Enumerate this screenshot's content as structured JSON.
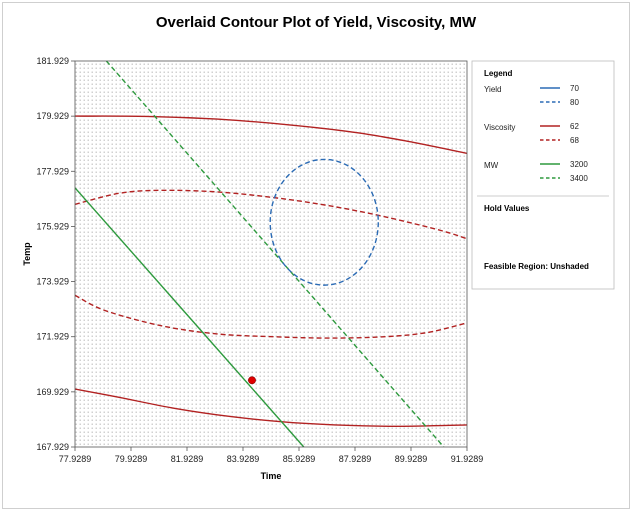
{
  "chart_data": {
    "type": "contour",
    "title": "Overlaid Contour Plot of Yield, Viscosity, MW",
    "xlabel": "Time",
    "ylabel": "Temp",
    "xlim": [
      77.9289,
      91.9289
    ],
    "ylim": [
      167.929,
      181.929
    ],
    "xticks": [
      "77.9289",
      "79.9289",
      "81.9289",
      "83.9289",
      "85.9289",
      "87.9289",
      "89.9289",
      "91.9289"
    ],
    "yticks": [
      "167.929",
      "169.929",
      "171.929",
      "173.929",
      "175.929",
      "177.929",
      "179.929",
      "181.929"
    ],
    "series": [
      {
        "group": "Viscosity",
        "level": "62",
        "style": "solid",
        "color": "#b22222",
        "points": [
          [
            77.93,
            179.93
          ],
          [
            80.5,
            179.92
          ],
          [
            83,
            179.82
          ],
          [
            85.5,
            179.62
          ],
          [
            88,
            179.33
          ],
          [
            90,
            178.98
          ],
          [
            91.93,
            178.58
          ]
        ]
      },
      {
        "group": "Viscosity",
        "level": "62",
        "style": "solid",
        "color": "#b22222",
        "points": [
          [
            77.93,
            170.03
          ],
          [
            79.5,
            169.73
          ],
          [
            81.5,
            169.33
          ],
          [
            83.5,
            169.03
          ],
          [
            85.5,
            168.83
          ],
          [
            87.5,
            168.72
          ],
          [
            89.5,
            168.68
          ],
          [
            91.93,
            168.73
          ]
        ]
      },
      {
        "group": "Viscosity",
        "level": "68",
        "style": "dashed",
        "color": "#b22222",
        "points": [
          [
            77.93,
            176.73
          ],
          [
            79.5,
            177.13
          ],
          [
            81,
            177.24
          ],
          [
            83,
            177.18
          ],
          [
            85,
            176.98
          ],
          [
            87,
            176.68
          ],
          [
            89,
            176.28
          ],
          [
            91,
            175.78
          ],
          [
            91.93,
            175.48
          ]
        ]
      },
      {
        "group": "Viscosity",
        "level": "68",
        "style": "dashed",
        "color": "#b22222",
        "points": [
          [
            77.93,
            173.43
          ],
          [
            79,
            172.88
          ],
          [
            81,
            172.33
          ],
          [
            83,
            172.03
          ],
          [
            85,
            171.93
          ],
          [
            87,
            171.88
          ],
          [
            89,
            171.93
          ],
          [
            90.5,
            172.08
          ],
          [
            91.93,
            172.43
          ]
        ]
      },
      {
        "group": "MW",
        "level": "3200",
        "style": "solid",
        "color": "#2e9a3e",
        "points": [
          [
            77.93,
            177.33
          ],
          [
            86.1,
            167.93
          ]
        ]
      },
      {
        "group": "MW",
        "level": "3400",
        "style": "dashed",
        "color": "#2e9a3e",
        "points": [
          [
            79.05,
            181.93
          ],
          [
            91.1,
            167.93
          ]
        ]
      }
    ],
    "ellipses": [
      {
        "group": "Yield",
        "level": "80",
        "style": "dashed",
        "color": "#2b6bb5",
        "cx": 86.83,
        "cy": 176.08,
        "rx": 1.93,
        "ry": 2.28
      }
    ],
    "markers": [
      {
        "x": 84.25,
        "y": 170.35,
        "color": "#e00000"
      }
    ],
    "legend": {
      "title": "Legend",
      "groups": [
        {
          "name": "Yield",
          "color": "#2b6bb5",
          "entries": [
            {
              "label": "70",
              "style": "solid"
            },
            {
              "label": "80",
              "style": "dashed"
            }
          ]
        },
        {
          "name": "Viscosity",
          "color": "#b22222",
          "entries": [
            {
              "label": "62",
              "style": "solid"
            },
            {
              "label": "68",
              "style": "dashed"
            }
          ]
        },
        {
          "name": "MW",
          "color": "#2e9a3e",
          "entries": [
            {
              "label": "3200",
              "style": "solid"
            },
            {
              "label": "3400",
              "style": "dashed"
            }
          ]
        }
      ],
      "hold_values_label": "Hold Values",
      "feasible_label": "Feasible Region: Unshaded"
    }
  }
}
